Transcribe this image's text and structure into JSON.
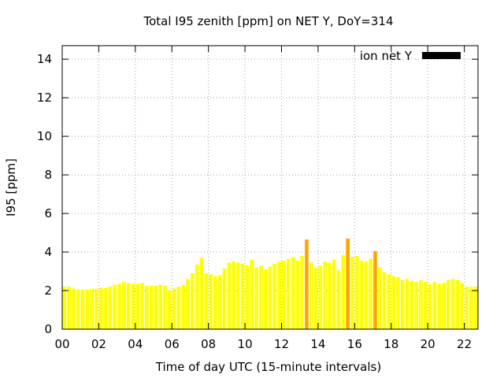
{
  "chart_data": {
    "type": "bar",
    "title": "Total I95 zenith [ppm] on NET Y, DoY=314",
    "xlabel": "Time of day UTC (15-minute intervals)",
    "ylabel": "I95 [ppm]",
    "xlim": [
      0,
      22.75
    ],
    "ylim": [
      0,
      14.7
    ],
    "xticks": [
      "00",
      "02",
      "04",
      "06",
      "08",
      "10",
      "12",
      "14",
      "16",
      "18",
      "20",
      "22"
    ],
    "yticks": [
      "0",
      "2",
      "4",
      "6",
      "8",
      "10",
      "12",
      "14"
    ],
    "grid": true,
    "legend": {
      "label": "ion net Y",
      "position": "top-right",
      "color": "#000000"
    },
    "colors": {
      "normal": "#ffff00",
      "elevated": "#ffa500"
    },
    "interval_hours": 0.25,
    "values": [
      2.2,
      2.2,
      2.1,
      2.05,
      2.05,
      2.05,
      2.1,
      2.1,
      2.15,
      2.15,
      2.2,
      2.3,
      2.35,
      2.45,
      2.4,
      2.35,
      2.35,
      2.4,
      2.25,
      2.25,
      2.25,
      2.3,
      2.25,
      2.0,
      2.1,
      2.2,
      2.3,
      2.6,
      2.9,
      3.35,
      3.7,
      2.9,
      2.85,
      2.75,
      2.8,
      3.15,
      3.45,
      3.5,
      3.45,
      3.4,
      3.3,
      3.6,
      3.2,
      3.3,
      3.1,
      3.25,
      3.4,
      3.5,
      3.55,
      3.65,
      3.75,
      3.55,
      3.8,
      4.65,
      3.45,
      3.2,
      3.3,
      3.5,
      3.45,
      3.6,
      3.05,
      3.85,
      4.7,
      3.75,
      3.8,
      3.55,
      3.5,
      3.65,
      4.05,
      3.2,
      2.95,
      2.85,
      2.75,
      2.7,
      2.55,
      2.6,
      2.5,
      2.45,
      2.55,
      2.45,
      2.35,
      2.45,
      2.35,
      2.4,
      2.55,
      2.6,
      2.55,
      2.4,
      2.2,
      2.2,
      2.2
    ],
    "elevated_indices": [
      53,
      62,
      68
    ]
  }
}
